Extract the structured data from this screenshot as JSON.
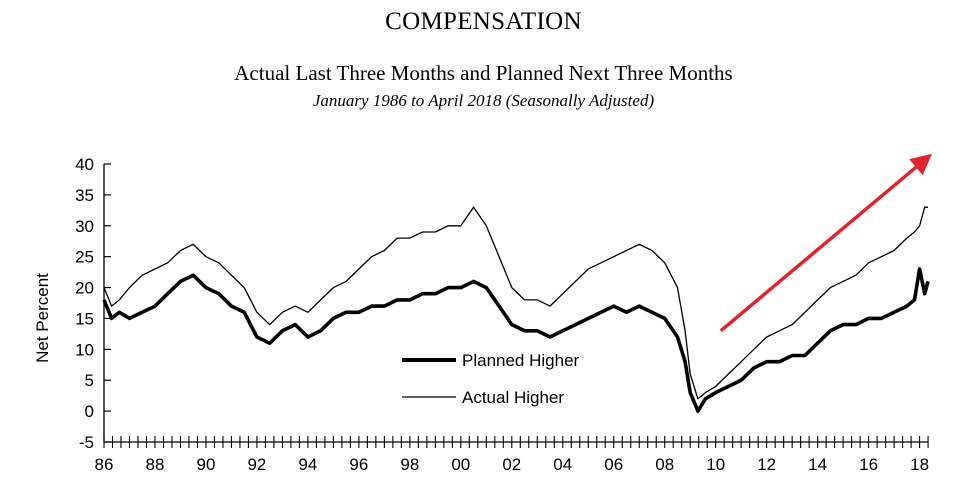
{
  "chart_data": {
    "type": "line",
    "title": "COMPENSATION",
    "subtitle": "Actual Last Three Months and Planned Next Three Months",
    "subsubtitle": "January 1986 to April 2018 (Seasonally Adjusted)",
    "xlabel": "",
    "ylabel": "Net Percent",
    "xlim": [
      1986,
      2018.33
    ],
    "ylim": [
      -5,
      40
    ],
    "yticks": [
      -5,
      0,
      5,
      10,
      15,
      20,
      25,
      30,
      35,
      40
    ],
    "xtick_labels": [
      "86",
      "88",
      "90",
      "92",
      "94",
      "96",
      "98",
      "00",
      "02",
      "04",
      "06",
      "08",
      "10",
      "12",
      "14",
      "16",
      "18"
    ],
    "xtick_values": [
      1986,
      1988,
      1990,
      1992,
      1994,
      1996,
      1998,
      2000,
      2002,
      2004,
      2006,
      2008,
      2010,
      2012,
      2014,
      2016,
      2018
    ],
    "series": [
      {
        "name": "Planned Higher",
        "style": "thick",
        "color": "#000000",
        "x": [
          1986.0,
          1986.3,
          1986.6,
          1987.0,
          1987.5,
          1988.0,
          1988.5,
          1989.0,
          1989.5,
          1990.0,
          1990.5,
          1991.0,
          1991.5,
          1992.0,
          1992.5,
          1993.0,
          1993.5,
          1994.0,
          1994.5,
          1995.0,
          1995.5,
          1996.0,
          1996.5,
          1997.0,
          1997.5,
          1998.0,
          1998.5,
          1999.0,
          1999.5,
          2000.0,
          2000.5,
          2001.0,
          2001.5,
          2002.0,
          2002.5,
          2003.0,
          2003.5,
          2004.0,
          2004.5,
          2005.0,
          2005.5,
          2006.0,
          2006.5,
          2007.0,
          2007.5,
          2008.0,
          2008.5,
          2008.8,
          2009.0,
          2009.3,
          2009.6,
          2010.0,
          2010.5,
          2011.0,
          2011.5,
          2012.0,
          2012.5,
          2013.0,
          2013.5,
          2014.0,
          2014.5,
          2015.0,
          2015.5,
          2016.0,
          2016.5,
          2017.0,
          2017.5,
          2017.8,
          2018.0,
          2018.2,
          2018.33
        ],
        "values": [
          18,
          15,
          16,
          15,
          16,
          17,
          19,
          21,
          22,
          20,
          19,
          17,
          16,
          12,
          11,
          13,
          14,
          12,
          13,
          15,
          16,
          16,
          17,
          17,
          18,
          18,
          19,
          19,
          20,
          20,
          21,
          20,
          17,
          14,
          13,
          13,
          12,
          13,
          14,
          15,
          16,
          17,
          16,
          17,
          16,
          15,
          12,
          8,
          3,
          0,
          2,
          3,
          4,
          5,
          7,
          8,
          8,
          9,
          9,
          11,
          13,
          14,
          14,
          15,
          15,
          16,
          17,
          18,
          23,
          19,
          21
        ]
      },
      {
        "name": "Actual Higher",
        "style": "thin",
        "color": "#000000",
        "x": [
          1986.0,
          1986.3,
          1986.6,
          1987.0,
          1987.5,
          1988.0,
          1988.5,
          1989.0,
          1989.5,
          1990.0,
          1990.5,
          1991.0,
          1991.5,
          1992.0,
          1992.5,
          1993.0,
          1993.5,
          1994.0,
          1994.5,
          1995.0,
          1995.5,
          1996.0,
          1996.5,
          1997.0,
          1997.5,
          1998.0,
          1998.5,
          1999.0,
          1999.5,
          2000.0,
          2000.5,
          2001.0,
          2001.5,
          2002.0,
          2002.5,
          2003.0,
          2003.5,
          2004.0,
          2004.5,
          2005.0,
          2005.5,
          2006.0,
          2006.5,
          2007.0,
          2007.5,
          2008.0,
          2008.5,
          2008.8,
          2009.0,
          2009.3,
          2009.6,
          2010.0,
          2010.5,
          2011.0,
          2011.5,
          2012.0,
          2012.5,
          2013.0,
          2013.5,
          2014.0,
          2014.5,
          2015.0,
          2015.5,
          2016.0,
          2016.5,
          2017.0,
          2017.5,
          2017.8,
          2018.0,
          2018.2,
          2018.33
        ],
        "values": [
          20,
          17,
          18,
          20,
          22,
          23,
          24,
          26,
          27,
          25,
          24,
          22,
          20,
          16,
          14,
          16,
          17,
          16,
          18,
          20,
          21,
          23,
          25,
          26,
          28,
          28,
          29,
          29,
          30,
          30,
          33,
          30,
          25,
          20,
          18,
          18,
          17,
          19,
          21,
          23,
          24,
          25,
          26,
          27,
          26,
          24,
          20,
          13,
          6,
          2,
          3,
          4,
          6,
          8,
          10,
          12,
          13,
          14,
          16,
          18,
          20,
          21,
          22,
          24,
          25,
          26,
          28,
          29,
          30,
          33,
          33
        ]
      }
    ],
    "legend": {
      "position": "center-bottom",
      "entries": [
        "Planned Higher",
        "Actual Higher"
      ]
    },
    "annotation": {
      "type": "arrow",
      "color": "#e3232b",
      "from_x": 2010.2,
      "from_y": 13,
      "to_x": 2018.3,
      "to_y": 41
    }
  }
}
